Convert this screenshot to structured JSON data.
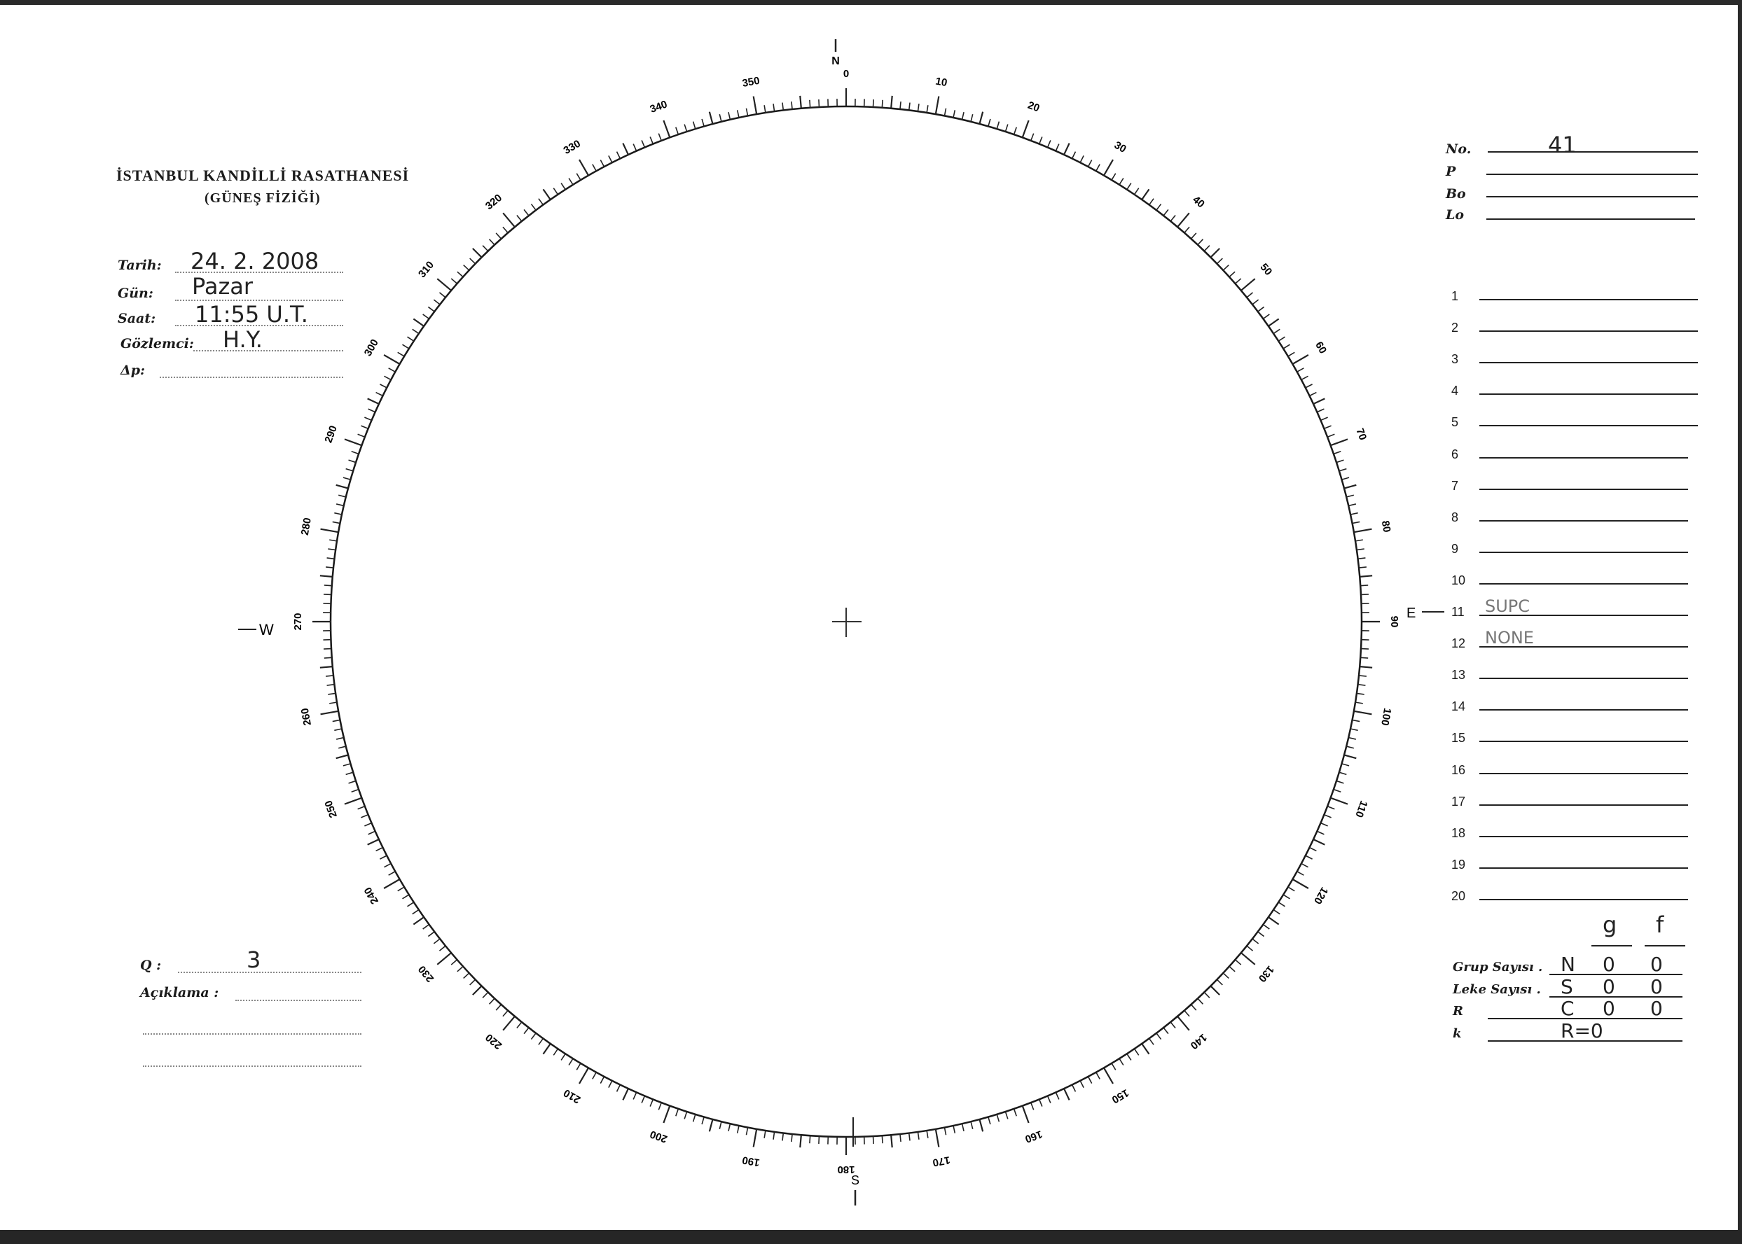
{
  "header": {
    "institution": "İSTANBUL KANDİLLİ RASATHANESİ",
    "department": "(GÜNEŞ FİZİĞİ)"
  },
  "observation": {
    "date_label": "Tarih:",
    "date_value": "24. 2. 2008",
    "day_label": "Gün:",
    "day_value": "Pazar",
    "time_label": "Saat:",
    "time_value": "11:55 U.T.",
    "observer_label": "Gözlemci:",
    "observer_value": "H.Y.",
    "delta_p_label": "Δp:",
    "delta_p_value": ""
  },
  "quality": {
    "q_label": "Q :",
    "q_value": "3",
    "note_label": "Açıklama :",
    "note_value": ""
  },
  "ephemeris": {
    "no_label": "No.",
    "no_value": "41",
    "p_label": "P",
    "p_value": "",
    "bo_label": "Bo",
    "bo_value": "",
    "lo_label": "Lo",
    "lo_value": ""
  },
  "numbered_lines": [
    {
      "n": "1",
      "text": ""
    },
    {
      "n": "2",
      "text": ""
    },
    {
      "n": "3",
      "text": ""
    },
    {
      "n": "4",
      "text": ""
    },
    {
      "n": "5",
      "text": ""
    },
    {
      "n": "6",
      "text": ""
    },
    {
      "n": "7",
      "text": ""
    },
    {
      "n": "8",
      "text": ""
    },
    {
      "n": "9",
      "text": ""
    },
    {
      "n": "10",
      "text": ""
    },
    {
      "n": "11",
      "text": "SUPC"
    },
    {
      "n": "12",
      "text": "NONE"
    },
    {
      "n": "13",
      "text": ""
    },
    {
      "n": "14",
      "text": ""
    },
    {
      "n": "15",
      "text": ""
    },
    {
      "n": "16",
      "text": ""
    },
    {
      "n": "17",
      "text": ""
    },
    {
      "n": "18",
      "text": ""
    },
    {
      "n": "19",
      "text": ""
    },
    {
      "n": "20",
      "text": ""
    }
  ],
  "counts": {
    "col_g": "g",
    "col_f": "f",
    "rows": [
      {
        "label": "Grup Sayısı .",
        "hemi": "N",
        "g": "0",
        "f": "0"
      },
      {
        "label": "Leke Sayısı .",
        "hemi": "S",
        "g": "0",
        "f": "0"
      },
      {
        "label": "R",
        "hemi": "C",
        "g": "0",
        "f": "0"
      },
      {
        "label": "k",
        "hemi": "R=0",
        "g": "",
        "f": ""
      }
    ]
  },
  "disk": {
    "directions": {
      "north": "N",
      "east": "E",
      "south": "S",
      "west": "W"
    },
    "scale_labels": [
      "0",
      "10",
      "20",
      "30",
      "40",
      "50",
      "60",
      "70",
      "80",
      "90",
      "100",
      "110",
      "120",
      "130",
      "140",
      "150",
      "160",
      "170",
      "180",
      "190",
      "200",
      "210",
      "220",
      "230",
      "240",
      "250",
      "260",
      "270",
      "280",
      "290",
      "300",
      "310",
      "320",
      "330",
      "340",
      "350"
    ]
  }
}
